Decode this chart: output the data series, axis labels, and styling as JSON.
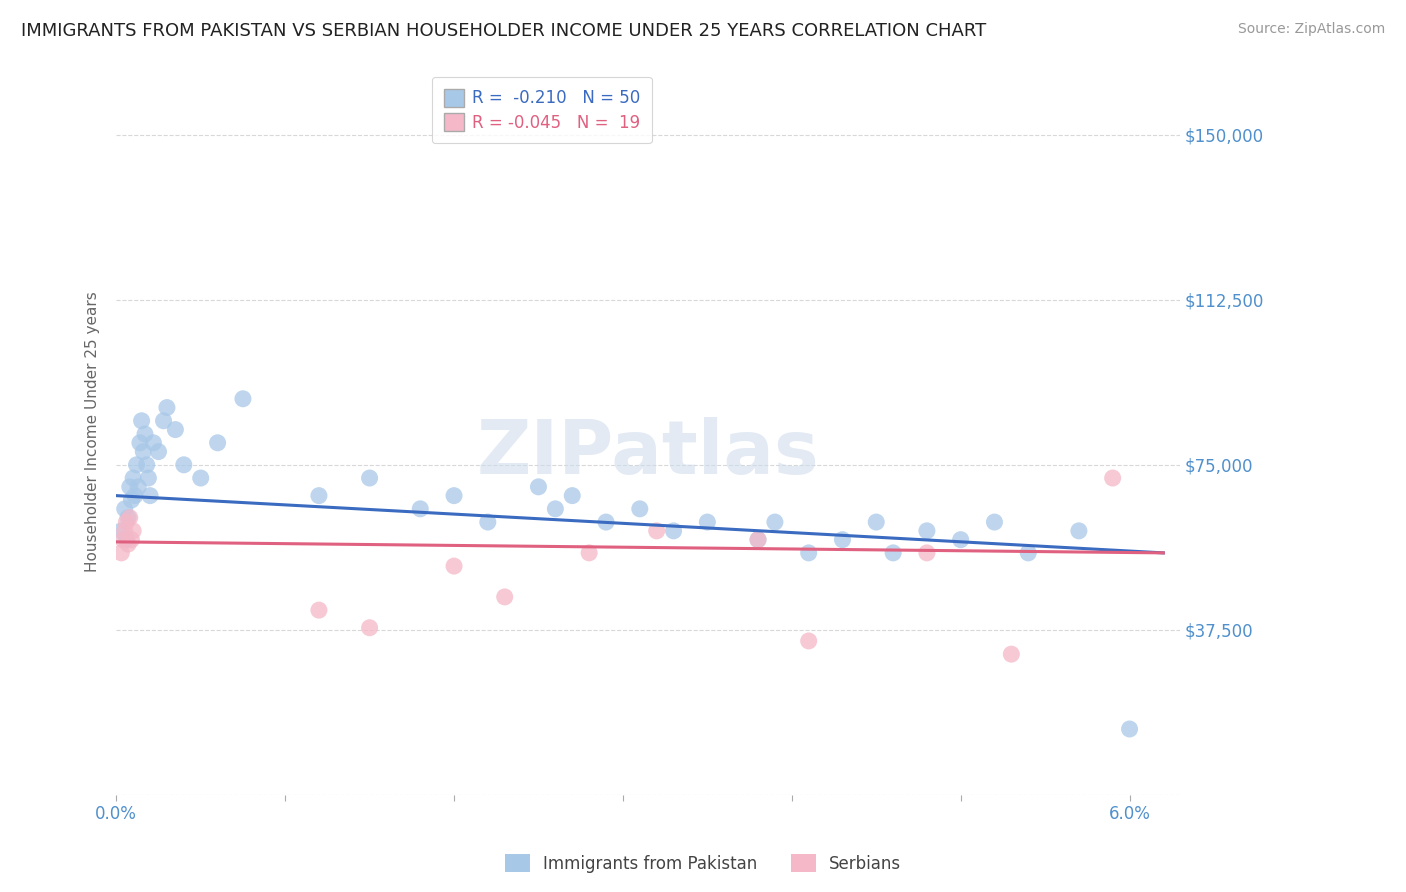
{
  "title": "IMMIGRANTS FROM PAKISTAN VS SERBIAN HOUSEHOLDER INCOME UNDER 25 YEARS CORRELATION CHART",
  "source": "Source: ZipAtlas.com",
  "ylabel": "Householder Income Under 25 years",
  "xlim": [
    0.0,
    0.063
  ],
  "ylim": [
    0,
    165000
  ],
  "yticks": [
    0,
    37500,
    75000,
    112500,
    150000
  ],
  "xticks": [
    0.0,
    0.01,
    0.02,
    0.03,
    0.04,
    0.05,
    0.06
  ],
  "pakistan_R": -0.21,
  "pakistan_N": 50,
  "serbian_R": -0.045,
  "serbian_N": 19,
  "pakistan_color": "#a8c8e8",
  "serbian_color": "#f4b8c8",
  "pakistan_line_color": "#3a6bc0",
  "serbian_line_color": "#e06080",
  "background_color": "#ffffff",
  "grid_color": "#d8d8d8",
  "watermark": "ZIPatlas",
  "title_fontsize": 13,
  "label_fontsize": 11,
  "tick_color": "#5090cc",
  "pakistan_x": [
    0.0003,
    0.0005,
    0.0006,
    0.0007,
    0.0008,
    0.0009,
    0.001,
    0.0011,
    0.0012,
    0.0013,
    0.0014,
    0.0015,
    0.0016,
    0.0017,
    0.0018,
    0.0019,
    0.002,
    0.0022,
    0.0025,
    0.0028,
    0.003,
    0.0035,
    0.004,
    0.005,
    0.006,
    0.0075,
    0.012,
    0.015,
    0.018,
    0.02,
    0.022,
    0.025,
    0.026,
    0.027,
    0.029,
    0.031,
    0.033,
    0.035,
    0.038,
    0.039,
    0.041,
    0.043,
    0.045,
    0.046,
    0.048,
    0.05,
    0.052,
    0.054,
    0.057,
    0.06
  ],
  "pakistan_y": [
    60000,
    65000,
    58000,
    63000,
    70000,
    67000,
    72000,
    68000,
    75000,
    70000,
    80000,
    85000,
    78000,
    82000,
    75000,
    72000,
    68000,
    80000,
    78000,
    85000,
    88000,
    83000,
    75000,
    72000,
    80000,
    90000,
    68000,
    72000,
    65000,
    68000,
    62000,
    70000,
    65000,
    68000,
    62000,
    65000,
    60000,
    62000,
    58000,
    62000,
    55000,
    58000,
    62000,
    55000,
    60000,
    58000,
    62000,
    55000,
    60000,
    15000
  ],
  "serbian_x": [
    0.0003,
    0.0004,
    0.0005,
    0.0006,
    0.0007,
    0.0008,
    0.0009,
    0.001,
    0.012,
    0.015,
    0.02,
    0.023,
    0.028,
    0.032,
    0.038,
    0.041,
    0.048,
    0.053,
    0.059
  ],
  "serbian_y": [
    55000,
    58000,
    60000,
    62000,
    57000,
    63000,
    58000,
    60000,
    42000,
    38000,
    52000,
    45000,
    55000,
    60000,
    58000,
    35000,
    55000,
    32000,
    72000
  ]
}
